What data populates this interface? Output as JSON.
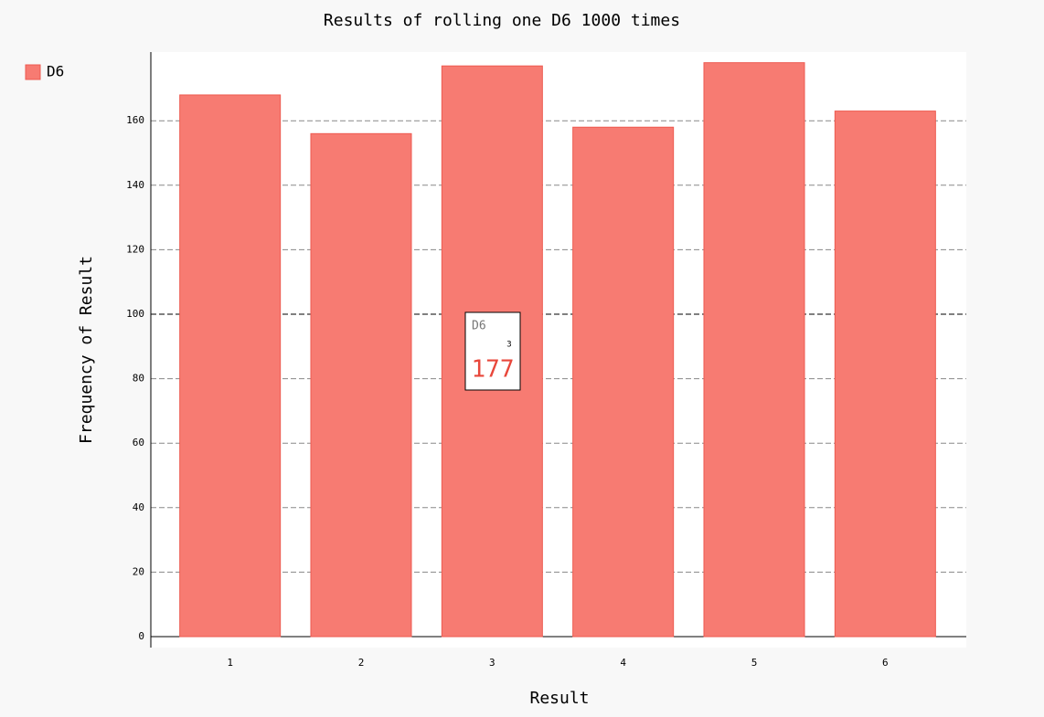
{
  "chart_data": {
    "type": "bar",
    "title": "Results of rolling one D6 1000 times",
    "x_label": "Result",
    "y_label": "Frequency of Result",
    "categories": [
      "1",
      "2",
      "3",
      "4",
      "5",
      "6"
    ],
    "series": [
      {
        "name": "D6",
        "color": "#f77b72",
        "values": [
          168,
          156,
          177,
          158,
          178,
          163
        ]
      }
    ],
    "ylim": [
      -3.4,
      181.3
    ],
    "yticks": [
      0,
      20,
      40,
      60,
      80,
      100,
      120,
      140,
      160
    ],
    "grid": true,
    "legend": "top-left"
  }
}
